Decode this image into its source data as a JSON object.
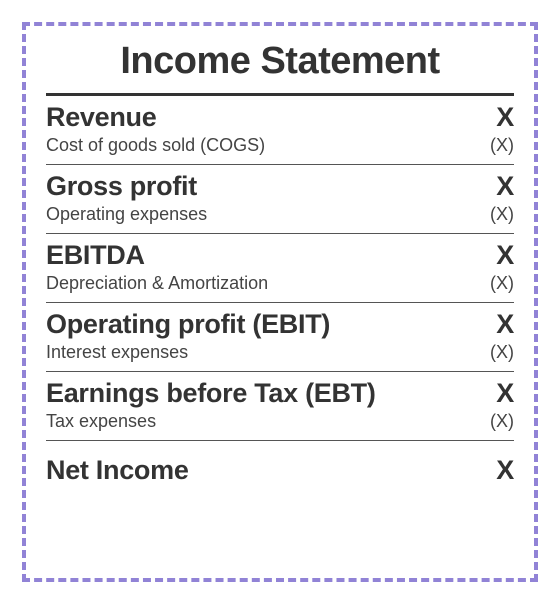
{
  "title": "Income Statement",
  "colors": {
    "border_dash": "#9183d6",
    "text": "#333333",
    "rule_thick": "#333333",
    "rule_thin": "#555555",
    "background": "#ffffff"
  },
  "typography": {
    "title_fontsize": 38,
    "major_fontsize": 27,
    "minor_fontsize": 18,
    "font_family": "Arial Narrow / condensed sans-serif",
    "title_weight": 700,
    "major_weight": 700,
    "minor_weight": 400
  },
  "layout": {
    "outer_width": 560,
    "outer_height": 604,
    "dash_border_width": 4,
    "rule_thick_width": 3,
    "rule_thin_width": 1.5
  },
  "sections": [
    {
      "major_label": "Revenue",
      "major_value": "X",
      "minor_label": "Cost of goods sold (COGS)",
      "minor_value": "(X)"
    },
    {
      "major_label": "Gross profit",
      "major_value": "X",
      "minor_label": "Operating expenses",
      "minor_value": "(X)"
    },
    {
      "major_label": "EBITDA",
      "major_value": "X",
      "minor_label": "Depreciation & Amortization",
      "minor_value": "(X)"
    },
    {
      "major_label": "Operating profit (EBIT)",
      "major_value": "X",
      "minor_label": "Interest expenses",
      "minor_value": "(X)"
    },
    {
      "major_label": "Earnings before Tax (EBT)",
      "major_value": "X",
      "minor_label": "Tax expenses",
      "minor_value": "(X)"
    }
  ],
  "net": {
    "label": "Net Income",
    "value": "X"
  }
}
